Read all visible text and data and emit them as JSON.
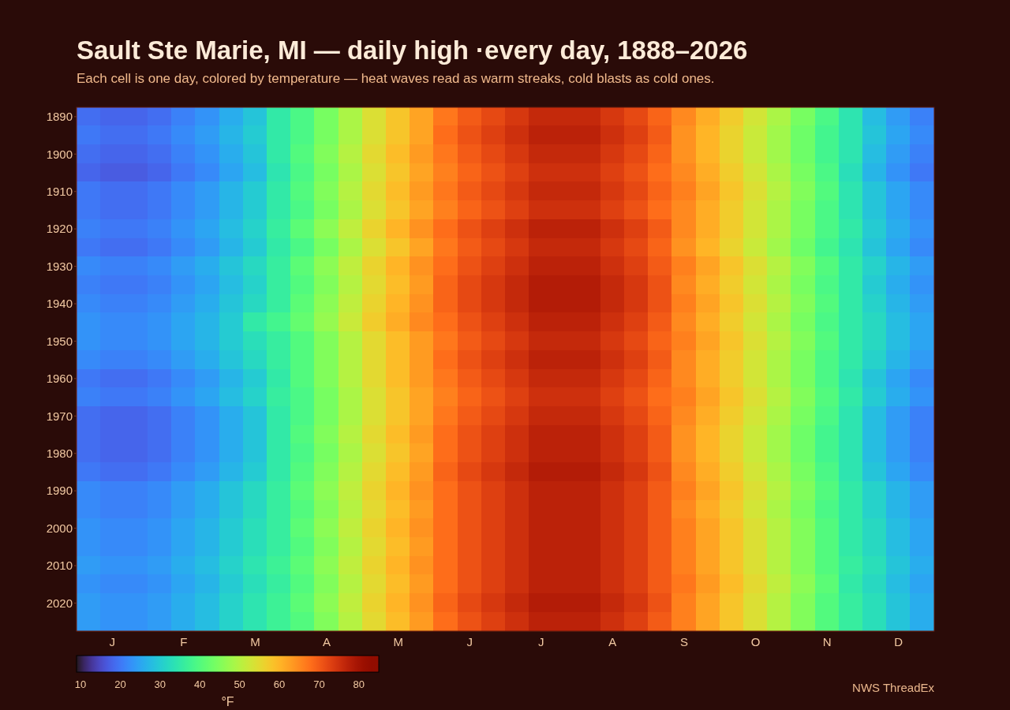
{
  "chart_data": {
    "type": "heatmap",
    "title": "Sault Ste Marie, MI — daily high ·every day, 1888–2026",
    "subtitle": "Each cell is one day, colored by temperature — heat waves read as warm streaks, cold blasts as cold ones.",
    "categories": [
      null,
      "J",
      null,
      null,
      "F",
      null,
      null,
      "M",
      null,
      null,
      "A",
      null,
      null,
      "M",
      null,
      null,
      "J",
      null,
      null,
      "J",
      null,
      null,
      "A",
      null,
      null,
      "S",
      null,
      null,
      "O",
      null,
      null,
      "N",
      null,
      null,
      "D",
      null
    ],
    "y_categories": [
      "1890",
      null,
      "1900",
      null,
      "1910",
      null,
      "1920",
      null,
      "1930",
      null,
      "1940",
      null,
      "1950",
      null,
      "1960",
      null,
      "1970",
      null,
      "1980",
      null,
      "1990",
      null,
      "2000",
      null,
      "2010",
      null,
      "2020",
      null
    ],
    "cells": [
      [
        19,
        18,
        18,
        19,
        21,
        23,
        26,
        29,
        35,
        39,
        44,
        49,
        54,
        58,
        62,
        67,
        70,
        72,
        74,
        76,
        76,
        76,
        74,
        72,
        69,
        65,
        61,
        57,
        53,
        49,
        44,
        39,
        34,
        28,
        24,
        21
      ],
      [
        20,
        19,
        19,
        20,
        22,
        24,
        27,
        30,
        35,
        39,
        44,
        49,
        54,
        58,
        62,
        68,
        71,
        73,
        75,
        77,
        77,
        77,
        75,
        73,
        70,
        64,
        60,
        56,
        52,
        48,
        43,
        38,
        34,
        29,
        25,
        22
      ],
      [
        19,
        18,
        18,
        19,
        21,
        23,
        26,
        29,
        35,
        40,
        45,
        50,
        55,
        59,
        63,
        67,
        70,
        72,
        74,
        76,
        76,
        76,
        74,
        72,
        69,
        64,
        60,
        56,
        52,
        48,
        43,
        38,
        34,
        28,
        24,
        21
      ],
      [
        18,
        17,
        17,
        18,
        20,
        22,
        25,
        28,
        34,
        39,
        44,
        49,
        54,
        58,
        62,
        66,
        69,
        71,
        73,
        75,
        75,
        75,
        73,
        71,
        68,
        65,
        61,
        57,
        53,
        49,
        44,
        39,
        33,
        27,
        23,
        20
      ],
      [
        20,
        19,
        19,
        20,
        22,
        24,
        27,
        30,
        35,
        40,
        45,
        50,
        55,
        59,
        63,
        67,
        70,
        72,
        74,
        76,
        76,
        76,
        74,
        72,
        69,
        66,
        62,
        58,
        54,
        50,
        45,
        40,
        34,
        29,
        25,
        22
      ],
      [
        20,
        19,
        19,
        20,
        22,
        24,
        27,
        30,
        35,
        39,
        44,
        49,
        54,
        58,
        62,
        66,
        69,
        71,
        73,
        75,
        75,
        75,
        73,
        71,
        68,
        65,
        61,
        57,
        53,
        49,
        44,
        39,
        34,
        29,
        25,
        22
      ],
      [
        21,
        20,
        20,
        21,
        23,
        25,
        28,
        31,
        36,
        41,
        46,
        51,
        56,
        60,
        64,
        68,
        71,
        73,
        75,
        77,
        77,
        77,
        75,
        73,
        70,
        65,
        61,
        57,
        53,
        49,
        44,
        39,
        35,
        30,
        26,
        23
      ],
      [
        20,
        19,
        19,
        20,
        22,
        24,
        27,
        30,
        35,
        39,
        44,
        49,
        54,
        58,
        62,
        67,
        70,
        72,
        74,
        76,
        76,
        76,
        74,
        72,
        69,
        64,
        60,
        56,
        52,
        48,
        43,
        38,
        34,
        29,
        25,
        22
      ],
      [
        22,
        21,
        21,
        22,
        24,
        26,
        29,
        32,
        36,
        41,
        46,
        51,
        56,
        60,
        64,
        68,
        71,
        73,
        75,
        77,
        77,
        77,
        75,
        73,
        70,
        66,
        62,
        58,
        54,
        50,
        45,
        40,
        35,
        31,
        27,
        24
      ],
      [
        21,
        20,
        20,
        21,
        23,
        25,
        28,
        31,
        36,
        40,
        45,
        50,
        55,
        59,
        63,
        69,
        72,
        74,
        76,
        78,
        78,
        78,
        76,
        74,
        71,
        65,
        61,
        57,
        53,
        49,
        44,
        39,
        35,
        30,
        26,
        23
      ],
      [
        22,
        21,
        21,
        22,
        24,
        26,
        29,
        32,
        36,
        41,
        46,
        51,
        56,
        60,
        64,
        69,
        72,
        74,
        76,
        78,
        78,
        78,
        76,
        74,
        71,
        66,
        62,
        58,
        54,
        50,
        45,
        40,
        35,
        31,
        27,
        24
      ],
      [
        23,
        22,
        22,
        23,
        25,
        27,
        30,
        35,
        38,
        42,
        47,
        52,
        57,
        61,
        65,
        68,
        71,
        73,
        75,
        77,
        77,
        77,
        75,
        73,
        70,
        65,
        61,
        57,
        53,
        49,
        44,
        39,
        35,
        32,
        28,
        25
      ],
      [
        23,
        22,
        22,
        23,
        25,
        27,
        30,
        33,
        36,
        40,
        45,
        50,
        55,
        59,
        63,
        67,
        70,
        72,
        74,
        76,
        76,
        76,
        74,
        72,
        69,
        66,
        62,
        58,
        54,
        50,
        45,
        40,
        35,
        32,
        28,
        25
      ],
      [
        22,
        21,
        21,
        22,
        24,
        26,
        29,
        32,
        36,
        40,
        45,
        50,
        55,
        59,
        63,
        68,
        71,
        73,
        75,
        77,
        77,
        77,
        75,
        73,
        70,
        65,
        61,
        57,
        53,
        49,
        44,
        39,
        35,
        31,
        27,
        24
      ],
      [
        20,
        19,
        19,
        20,
        22,
        24,
        27,
        30,
        35,
        40,
        45,
        50,
        55,
        59,
        63,
        67,
        70,
        72,
        74,
        76,
        76,
        76,
        74,
        72,
        69,
        65,
        61,
        57,
        53,
        49,
        44,
        39,
        34,
        29,
        25,
        22
      ],
      [
        21,
        20,
        20,
        21,
        23,
        25,
        28,
        31,
        36,
        39,
        44,
        49,
        54,
        58,
        62,
        66,
        69,
        71,
        73,
        75,
        75,
        75,
        73,
        71,
        68,
        66,
        62,
        58,
        54,
        50,
        45,
        40,
        35,
        30,
        26,
        23
      ],
      [
        19,
        18,
        18,
        19,
        21,
        23,
        26,
        29,
        35,
        39,
        44,
        49,
        54,
        58,
        62,
        67,
        70,
        72,
        74,
        76,
        76,
        76,
        74,
        72,
        69,
        65,
        61,
        57,
        53,
        49,
        44,
        39,
        34,
        28,
        24,
        21
      ],
      [
        19,
        18,
        18,
        19,
        21,
        23,
        26,
        29,
        35,
        40,
        45,
        50,
        55,
        59,
        63,
        68,
        71,
        73,
        75,
        77,
        77,
        77,
        75,
        73,
        70,
        64,
        60,
        56,
        52,
        48,
        43,
        38,
        34,
        28,
        24,
        21
      ],
      [
        19,
        18,
        18,
        19,
        21,
        23,
        26,
        29,
        35,
        39,
        44,
        49,
        54,
        58,
        62,
        68,
        71,
        73,
        75,
        77,
        77,
        77,
        75,
        73,
        70,
        64,
        60,
        56,
        52,
        48,
        43,
        38,
        34,
        28,
        24,
        21
      ],
      [
        20,
        19,
        19,
        20,
        22,
        24,
        27,
        30,
        35,
        40,
        45,
        50,
        55,
        59,
        63,
        69,
        72,
        74,
        76,
        78,
        78,
        78,
        76,
        74,
        71,
        65,
        61,
        57,
        53,
        49,
        44,
        39,
        34,
        29,
        25,
        22
      ],
      [
        22,
        21,
        21,
        22,
        24,
        26,
        29,
        32,
        36,
        41,
        46,
        51,
        56,
        60,
        64,
        68,
        71,
        73,
        75,
        77,
        77,
        77,
        75,
        73,
        70,
        66,
        62,
        58,
        54,
        50,
        45,
        40,
        35,
        31,
        27,
        24
      ],
      [
        22,
        21,
        21,
        22,
        24,
        26,
        29,
        32,
        36,
        40,
        45,
        50,
        55,
        59,
        63,
        68,
        71,
        73,
        75,
        77,
        77,
        77,
        75,
        73,
        70,
        65,
        61,
        57,
        53,
        49,
        44,
        39,
        35,
        31,
        27,
        24
      ],
      [
        23,
        22,
        22,
        23,
        25,
        27,
        30,
        33,
        36,
        41,
        46,
        51,
        56,
        60,
        64,
        68,
        71,
        73,
        75,
        77,
        77,
        77,
        75,
        73,
        70,
        66,
        62,
        58,
        54,
        50,
        45,
        40,
        35,
        32,
        28,
        25
      ],
      [
        23,
        22,
        22,
        23,
        25,
        27,
        30,
        33,
        36,
        40,
        45,
        50,
        55,
        59,
        63,
        68,
        71,
        73,
        75,
        77,
        77,
        77,
        75,
        73,
        70,
        66,
        62,
        58,
        54,
        50,
        45,
        40,
        35,
        32,
        28,
        25
      ],
      [
        24,
        23,
        23,
        24,
        26,
        28,
        31,
        34,
        37,
        41,
        46,
        51,
        56,
        60,
        64,
        68,
        71,
        73,
        75,
        77,
        77,
        77,
        75,
        73,
        70,
        66,
        62,
        58,
        54,
        50,
        45,
        40,
        36,
        33,
        29,
        26
      ],
      [
        23,
        22,
        22,
        23,
        25,
        27,
        30,
        33,
        36,
        40,
        45,
        50,
        55,
        59,
        63,
        68,
        71,
        73,
        75,
        77,
        77,
        77,
        75,
        73,
        70,
        67,
        63,
        59,
        55,
        51,
        46,
        41,
        35,
        32,
        28,
        25
      ],
      [
        24,
        23,
        23,
        24,
        26,
        28,
        31,
        34,
        37,
        41,
        46,
        51,
        56,
        60,
        64,
        69,
        72,
        74,
        76,
        78,
        78,
        78,
        76,
        74,
        71,
        66,
        62,
        58,
        54,
        50,
        45,
        40,
        36,
        33,
        29,
        26
      ],
      [
        24,
        23,
        23,
        24,
        26,
        28,
        31,
        34,
        37,
        40,
        45,
        50,
        55,
        59,
        63,
        68,
        71,
        73,
        75,
        77,
        77,
        77,
        75,
        73,
        70,
        66,
        62,
        58,
        54,
        50,
        45,
        40,
        36,
        33,
        29,
        26
      ]
    ],
    "clim": [
      9,
      85
    ],
    "cticks": [
      10,
      20,
      30,
      40,
      50,
      60,
      70,
      80
    ],
    "clabel": "°F",
    "annotations": [
      "NWS ThreadEx"
    ]
  }
}
